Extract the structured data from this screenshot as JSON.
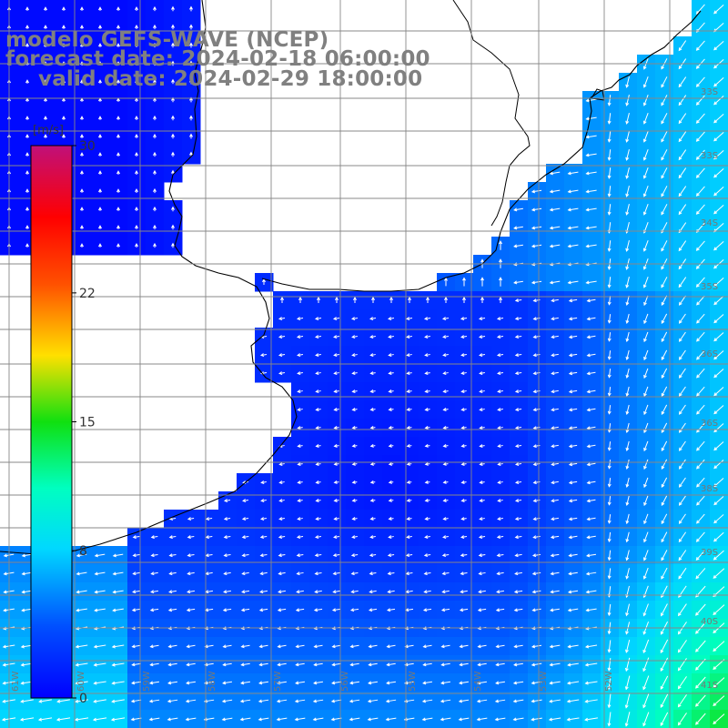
{
  "titles": {
    "model": "modelo GEFS-WAVE (NCEP)",
    "forecast": "forecast date: 2024-02-18 06:00:00",
    "valid": "valid date: 2024-02-29 18:00:00"
  },
  "colorbar": {
    "unit": "[m/s]",
    "range": [
      0,
      30
    ],
    "tick_labels": [
      "30",
      "22",
      "15",
      "8",
      "0"
    ],
    "tick_values": [
      30,
      22,
      15,
      8,
      0
    ],
    "colormap": "jet"
  },
  "graticule": {
    "lat_labels": [
      "33S",
      "33S",
      "34S",
      "35S",
      "36S",
      "36S",
      "38S",
      "39S",
      "40S",
      "41S"
    ],
    "lon_labels": [
      "61W",
      "60W",
      "59W",
      "58W",
      "57W",
      "56W",
      "55W",
      "54W",
      "53W",
      "52W"
    ]
  },
  "field": {
    "variable": "wind speed",
    "colors": {
      "land": "#ffffff",
      "coast": "#000000",
      "grid": "#888888",
      "arrow": "#ffffff"
    }
  }
}
